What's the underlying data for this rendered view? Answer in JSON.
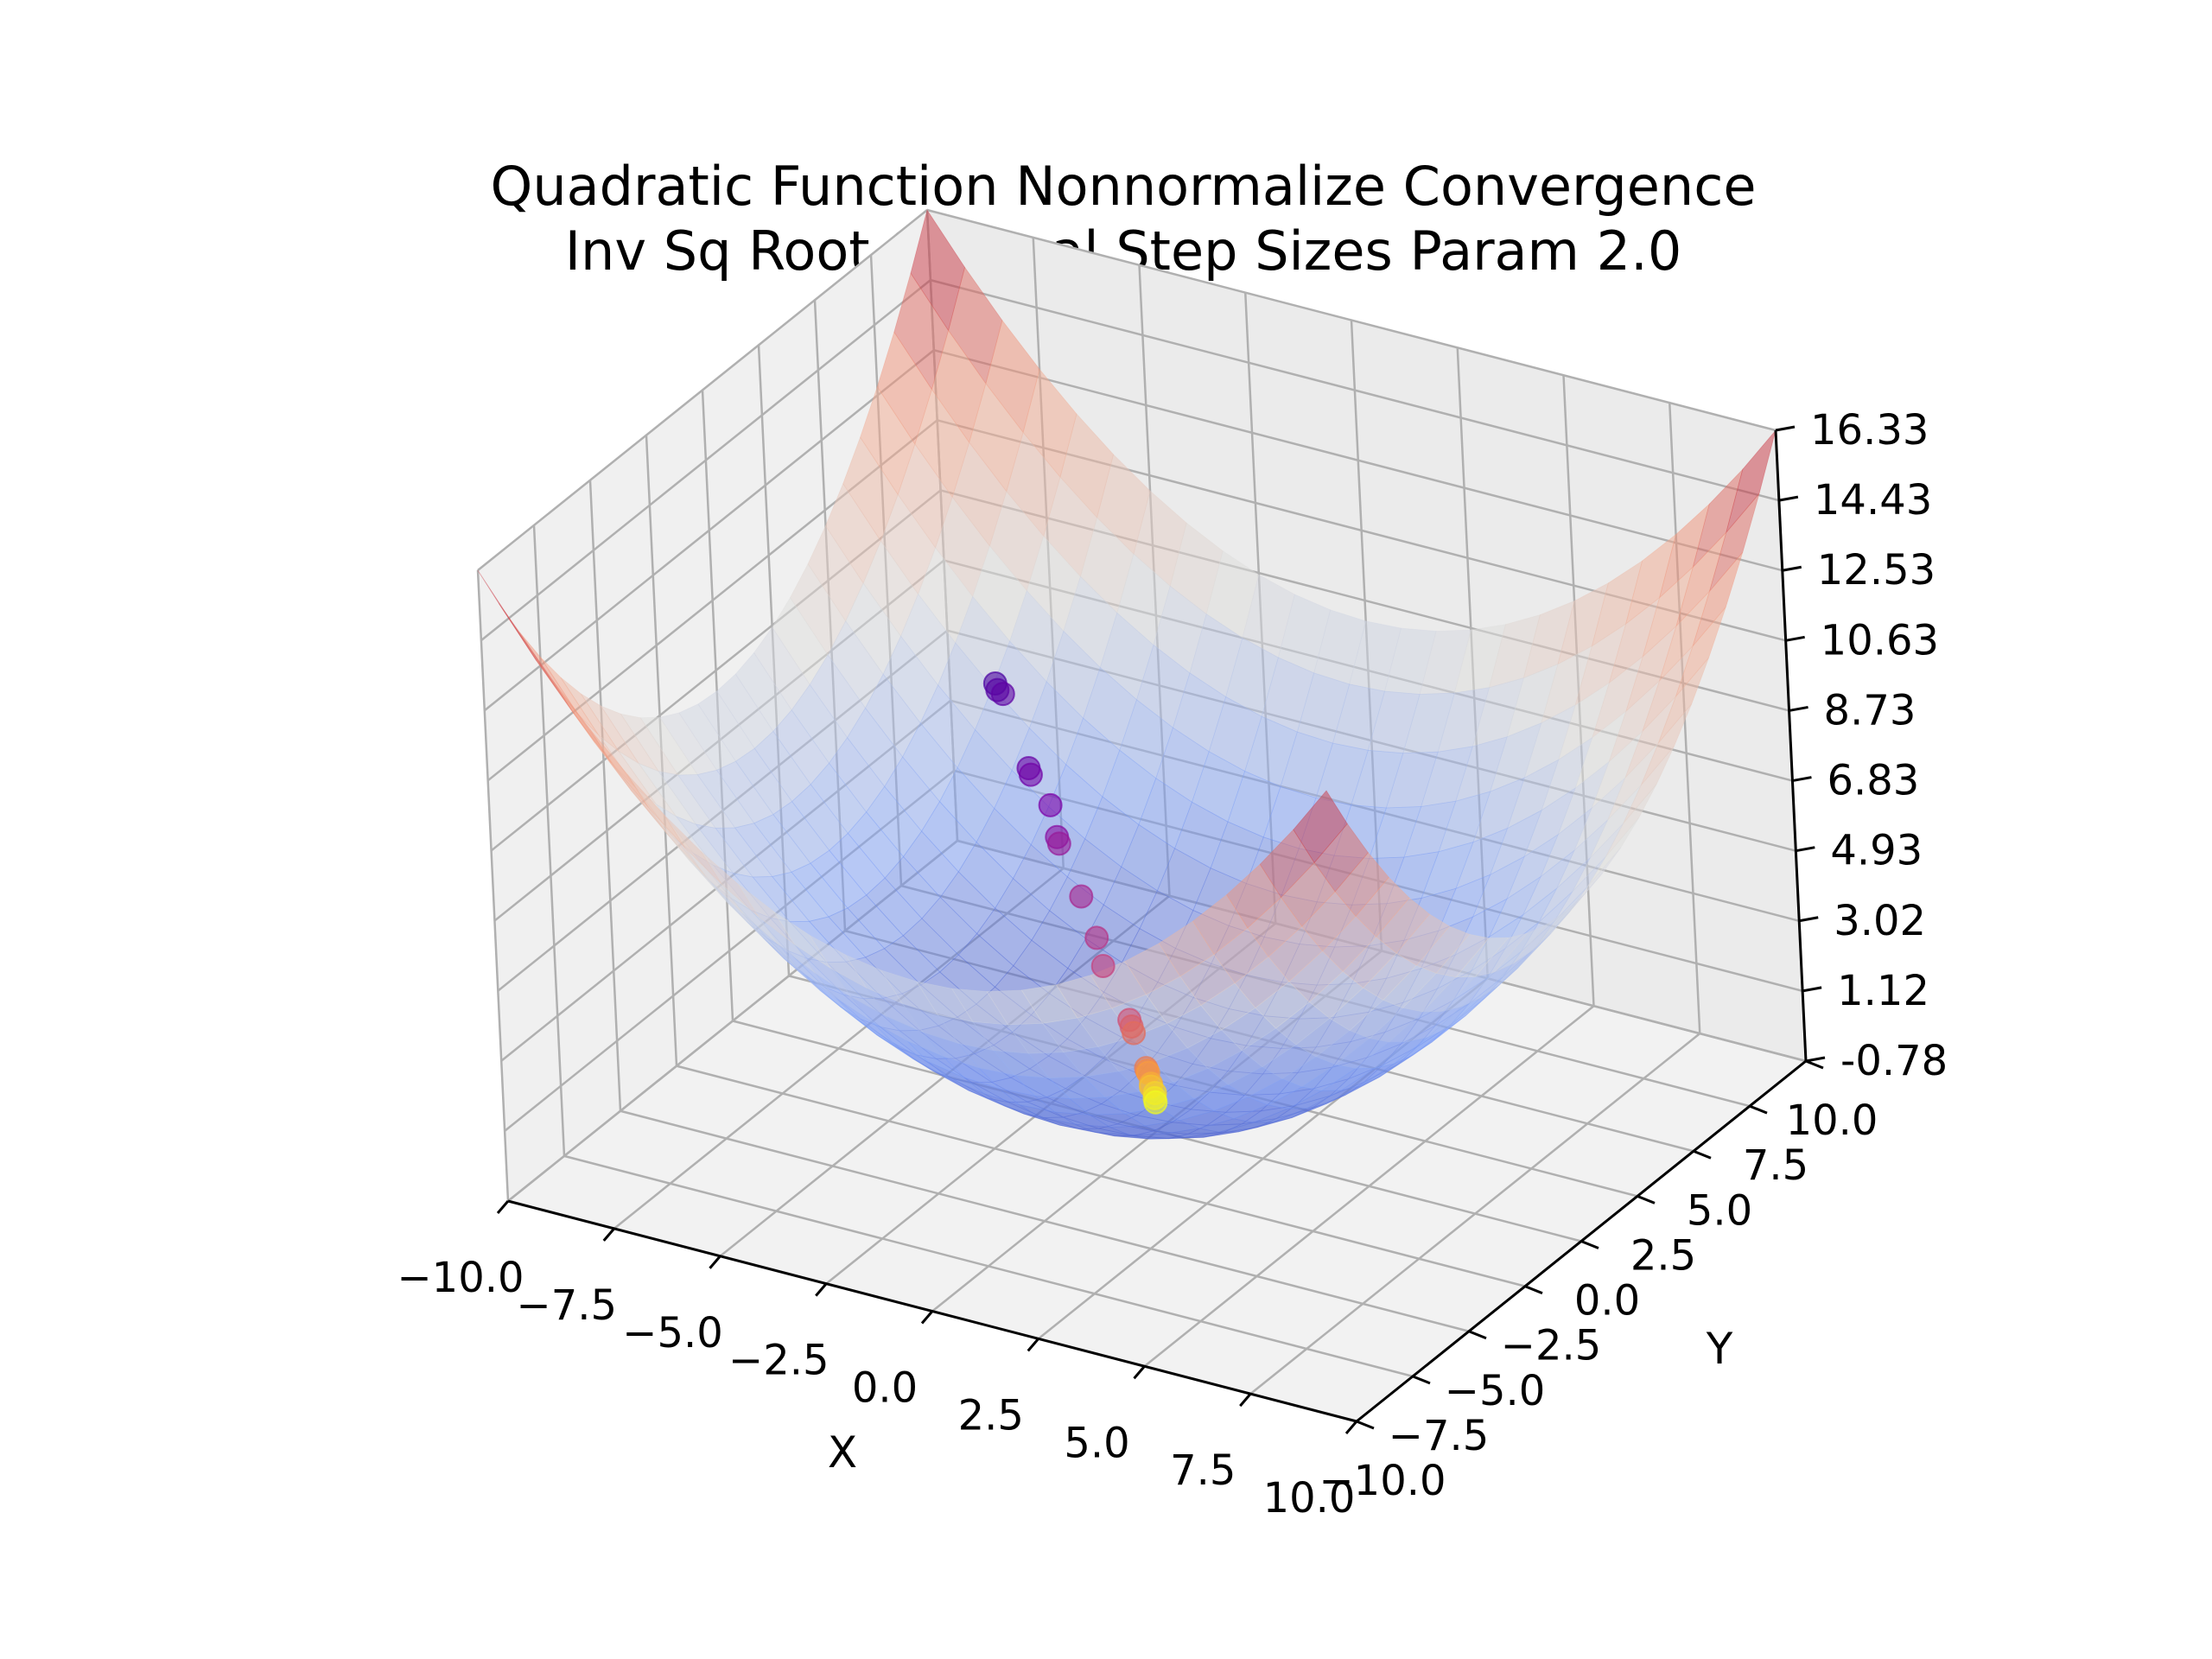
{
  "figure": {
    "title_line1": "Quadratic Function Nonnormalize Convergence",
    "title_line2": "Inv Sq Root Optimal Step Sizes Param 2.0"
  },
  "chart_data": {
    "type": "surface3d",
    "title": "Quadratic Function Nonnormalize Convergence\n Inv Sq Root Optimal Step Sizes Param 2.0",
    "xlabel": "X",
    "ylabel": "Y",
    "zlabel": "",
    "xlim": [
      -10.0,
      10.0
    ],
    "ylim": [
      -10.0,
      10.0
    ],
    "zlim": [
      -0.78,
      16.33
    ],
    "x_ticks": [
      "−10.0",
      "−7.5",
      "−5.0",
      "−2.5",
      "0.0",
      "2.5",
      "5.0",
      "7.5",
      "10.0"
    ],
    "y_ticks": [
      "−10.0",
      "−7.5",
      "−5.0",
      "−2.5",
      "0.0",
      "2.5",
      "5.0",
      "7.5",
      "10.0"
    ],
    "z_ticks": [
      "-0.78",
      "1.12",
      "3.02",
      "4.93",
      "6.83",
      "8.73",
      "10.63",
      "12.53",
      "14.43",
      "16.33"
    ],
    "grid": true,
    "surface": {
      "function": "z = (x^2 + y^2) / 12.25",
      "colormap": "coolwarm",
      "alpha": 0.5,
      "corner_values": {
        "x-10_y-10": 16.33,
        "x10_y-10": 16.33,
        "x-10_y10": 16.33,
        "x10_y10": 16.33,
        "x0_y0": 0.0
      }
    },
    "series": [
      {
        "type": "scatter",
        "colormap": "plasma",
        "points": [
          {
            "x": -6.8,
            "y": 6.2,
            "z": 6.3
          },
          {
            "x": -6.7,
            "y": 6.1,
            "z": 6.2
          },
          {
            "x": -6.6,
            "y": 6.15,
            "z": 6.1
          },
          {
            "x": -5.6,
            "y": 5.3,
            "z": 4.8
          },
          {
            "x": -5.5,
            "y": 5.2,
            "z": 4.7
          },
          {
            "x": -4.9,
            "y": 4.9,
            "z": 4.2
          },
          {
            "x": -4.5,
            "y": 4.4,
            "z": 3.7
          },
          {
            "x": -4.4,
            "y": 4.3,
            "z": 3.6
          },
          {
            "x": -3.6,
            "y": 3.7,
            "z": 2.7
          },
          {
            "x": -3.0,
            "y": 3.2,
            "z": 2.0
          },
          {
            "x": -2.6,
            "y": 2.7,
            "z": 1.6
          },
          {
            "x": -1.7,
            "y": 2.1,
            "z": 0.7
          },
          {
            "x": -1.6,
            "y": 2.0,
            "z": 0.6
          },
          {
            "x": -1.5,
            "y": 1.9,
            "z": 0.5
          },
          {
            "x": -0.8,
            "y": 1.1,
            "z": 0.15
          },
          {
            "x": -0.75,
            "y": 1.05,
            "z": 0.12
          },
          {
            "x": -0.7,
            "y": 1.0,
            "z": 0.1
          },
          {
            "x": -0.45,
            "y": 0.65,
            "z": 0.05
          },
          {
            "x": -0.4,
            "y": 0.55,
            "z": 0.04
          },
          {
            "x": -0.2,
            "y": 0.35,
            "z": 0.02
          },
          {
            "x": -0.1,
            "y": 0.15,
            "z": 0.01
          },
          {
            "x": 0.0,
            "y": 0.0,
            "z": 0.0
          }
        ]
      }
    ]
  }
}
